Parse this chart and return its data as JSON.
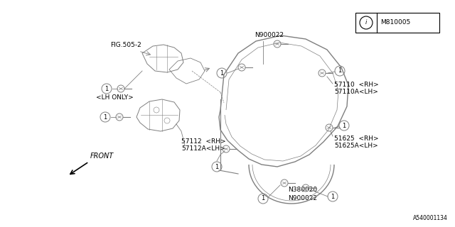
{
  "bg_color": "#ffffff",
  "line_color": "#7f7f7f",
  "text_color": "#000000",
  "fig_width": 6.4,
  "fig_height": 3.2,
  "dpi": 100,
  "diagram_id": "A540001134",
  "ref_box_text": "M810005",
  "fig505_label": "FIG.505-2",
  "lh_only_label": "<LH ONLY>",
  "n900022_top": "N900022",
  "label_57110rh": "57110  <RH>",
  "label_57110alh": "57110A<LH>",
  "label_57112rh": "57112  <RH>",
  "label_57112alh": "57112A<LH>",
  "label_51625rh": "51625  <RH>",
  "label_51625alh": "51625A<LH>",
  "label_n380020": "N380020",
  "label_n900022b": "N900022",
  "front_text": "FRONT"
}
